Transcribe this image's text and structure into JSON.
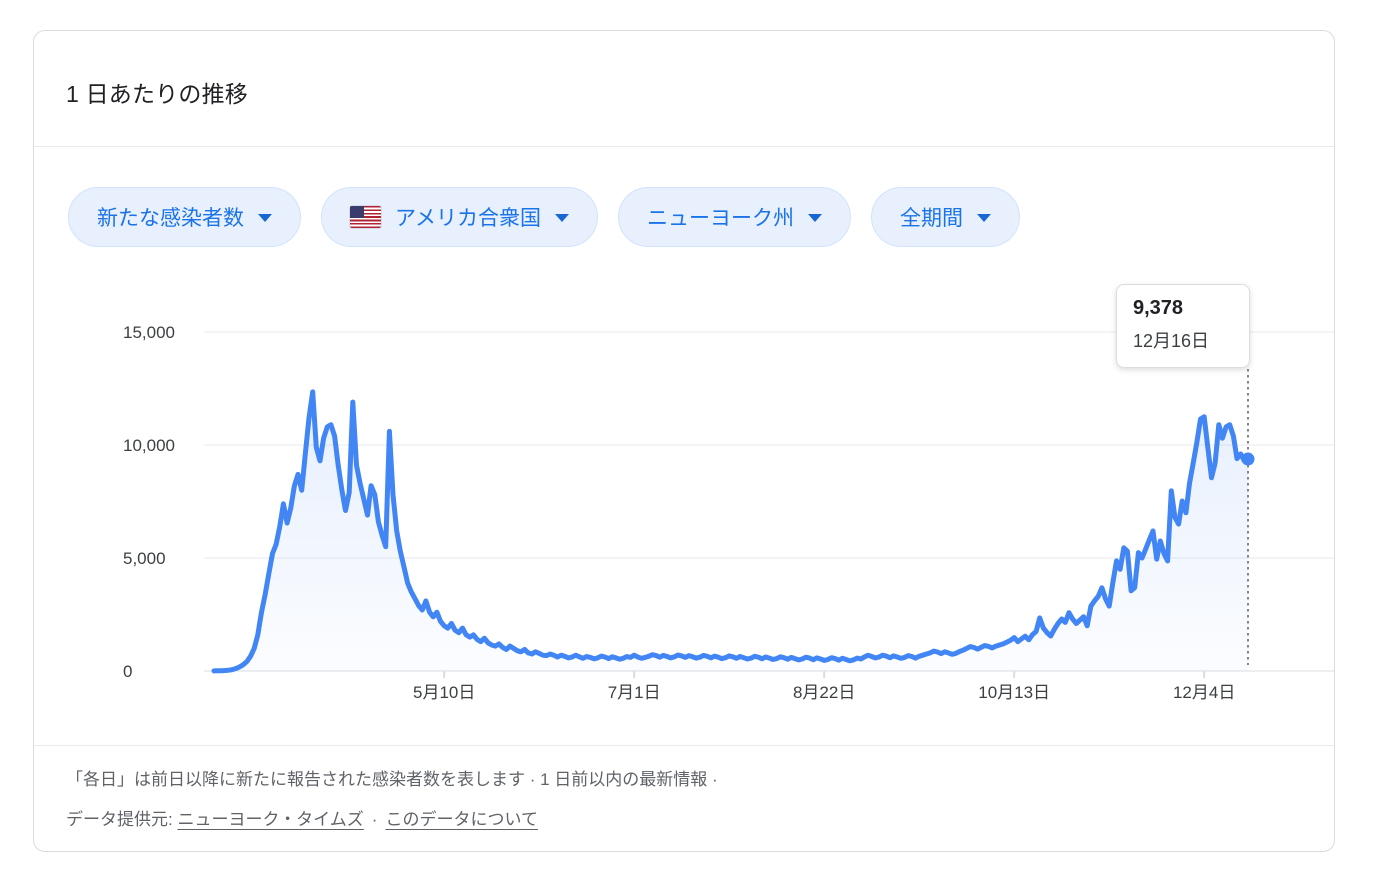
{
  "header": {
    "title": "1 日あたりの推移"
  },
  "filters": {
    "metric": {
      "label": "新たな感染者数"
    },
    "country": {
      "label": "アメリカ合衆国",
      "flag": "us-flag"
    },
    "region": {
      "label": "ニューヨーク州"
    },
    "period": {
      "label": "全期間"
    }
  },
  "tooltip": {
    "value": "9,378",
    "date": "12月16日"
  },
  "chart_data": {
    "type": "line",
    "title": "1 日あたりの推移 — 新たな感染者数 (ニューヨーク州, 全期間)",
    "series_name": "新たな感染者数",
    "x_start_date": "2020-03-08",
    "x_end_date": "2020-12-16",
    "x_tick_labels": [
      "5月10日",
      "7月1日",
      "8月22日",
      "10月13日",
      "12月4日"
    ],
    "x_tick_day_indices": [
      63,
      115,
      167,
      219,
      271
    ],
    "y_ticks": [
      0,
      5000,
      10000,
      15000
    ],
    "y_tick_labels": [
      "0",
      "5,000",
      "10,000",
      "15,000"
    ],
    "ylim": [
      0,
      15000
    ],
    "grid": true,
    "legend_position": "none",
    "line_color": "#4285f4",
    "values": [
      5,
      8,
      12,
      20,
      35,
      60,
      110,
      180,
      280,
      420,
      650,
      1000,
      1600,
      2600,
      3400,
      4300,
      5200,
      5600,
      6400,
      7400,
      6550,
      7200,
      8200,
      8700,
      8000,
      9600,
      11200,
      12350,
      9900,
      9300,
      10300,
      10800,
      10900,
      10400,
      9100,
      8000,
      7100,
      7900,
      11900,
      9100,
      8300,
      7600,
      6900,
      8200,
      7800,
      6600,
      6000,
      5500,
      10600,
      7800,
      6200,
      5300,
      4600,
      3900,
      3500,
      3200,
      2900,
      2700,
      3100,
      2600,
      2400,
      2600,
      2200,
      2000,
      1900,
      2100,
      1800,
      1700,
      1900,
      1600,
      1500,
      1600,
      1400,
      1300,
      1450,
      1250,
      1150,
      1100,
      1200,
      1050,
      950,
      1100,
      1000,
      900,
      850,
      950,
      800,
      750,
      850,
      780,
      700,
      680,
      750,
      700,
      620,
      700,
      650,
      580,
      620,
      700,
      630,
      560,
      640,
      600,
      540,
      580,
      660,
      620,
      550,
      630,
      580,
      520,
      560,
      640,
      600,
      700,
      620,
      560,
      600,
      650,
      720,
      680,
      610,
      690,
      640,
      580,
      630,
      710,
      670,
      600,
      680,
      630,
      570,
      610,
      690,
      650,
      580,
      660,
      610,
      550,
      590,
      670,
      630,
      560,
      640,
      590,
      530,
      570,
      650,
      610,
      540,
      620,
      570,
      510,
      550,
      630,
      590,
      520,
      600,
      550,
      490,
      530,
      610,
      570,
      500,
      580,
      530,
      470,
      510,
      590,
      550,
      480,
      560,
      510,
      450,
      490,
      570,
      530,
      620,
      700,
      640,
      580,
      620,
      700,
      660,
      590,
      670,
      620,
      560,
      600,
      680,
      640,
      570,
      650,
      700,
      750,
      800,
      880,
      840,
      770,
      850,
      800,
      740,
      780,
      860,
      920,
      1000,
      1080,
      1040,
      970,
      1050,
      1130,
      1090,
      1020,
      1100,
      1150,
      1200,
      1280,
      1360,
      1480,
      1300,
      1420,
      1540,
      1380,
      1600,
      1750,
      2350,
      1900,
      1700,
      1550,
      1850,
      2100,
      2300,
      2150,
      2580,
      2300,
      2100,
      2250,
      2400,
      2000,
      2870,
      3100,
      3300,
      3680,
      3200,
      2870,
      3900,
      4870,
      4500,
      5450,
      5300,
      3550,
      3690,
      5240,
      5000,
      5400,
      5800,
      6200,
      4950,
      5750,
      5200,
      4870,
      7970,
      6800,
      6500,
      7520,
      7000,
      8300,
      9200,
      10100,
      11150,
      11250,
      9900,
      8550,
      9200,
      10900,
      10300,
      10800,
      10900,
      10400,
      9400,
      9600,
      9300,
      9378
    ],
    "highlight": {
      "day_index": 283,
      "value": 9378,
      "label_value": "9,378",
      "label_date": "12月16日"
    }
  },
  "footer": {
    "line1": "「各日」は前日以降に新たに報告された感染者数を表します · 1 日前以内の最新情報 ·",
    "line2_prefix": "データ提供元:",
    "source_link": "ニューヨーク・タイムズ",
    "separator": "·",
    "about_link": "このデータについて"
  }
}
